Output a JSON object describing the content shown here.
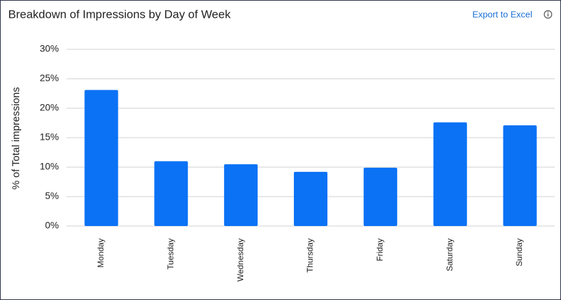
{
  "chart_data": {
    "type": "bar",
    "title": "Breakdown of Impressions by Day of Week",
    "export_label": "Export to Excel",
    "y_label": "% of Total impressions",
    "categories": [
      "Monday",
      "Tuesday",
      "Wednesday",
      "Thursday",
      "Friday",
      "Saturday",
      "Sunday"
    ],
    "values": [
      23.1,
      11.0,
      10.5,
      9.2,
      9.9,
      17.6,
      17.1
    ],
    "color": "#0b72f5",
    "ylim": [
      0,
      30
    ],
    "yticks": [
      {
        "value": 0,
        "label": "0%"
      },
      {
        "value": 5,
        "label": "5%"
      },
      {
        "value": 10,
        "label": "10%"
      },
      {
        "value": 15,
        "label": "15%"
      },
      {
        "value": 20,
        "label": "20%"
      },
      {
        "value": 25,
        "label": "25%"
      },
      {
        "value": 30,
        "label": "30%"
      }
    ],
    "grid": true
  }
}
